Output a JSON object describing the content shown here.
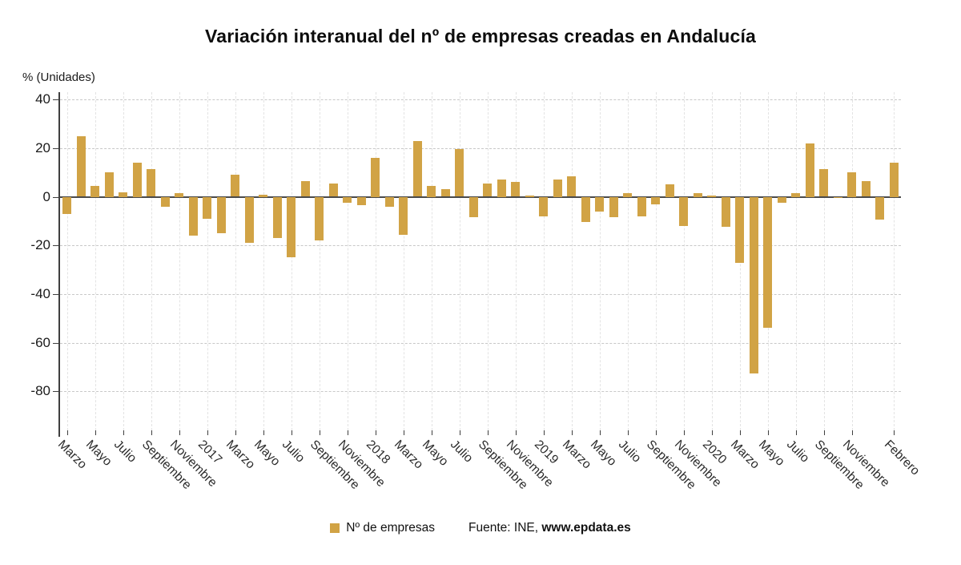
{
  "page": {
    "title": "Variación interanual del nº de empresas creadas en Andalucía",
    "y_axis_unit": "% (Unidades)"
  },
  "legend": {
    "label": "Nº de empresas",
    "color": "#d1a345"
  },
  "source": {
    "prefix": "Fuente: INE, ",
    "site": "www.epdata.es"
  },
  "chart_data": {
    "type": "bar",
    "title": "Variación interanual del nº de empresas creadas en Andalucía",
    "ylabel": "% (Unidades)",
    "series_name": "Nº de empresas",
    "bar_color": "#d1a345",
    "ylim": [
      -96,
      43
    ],
    "yticks": [
      40,
      20,
      0,
      -20,
      -40,
      -60,
      -80
    ],
    "grid": "dashed",
    "legend_position": "bottom-center",
    "values": [
      -7,
      25,
      4.5,
      10,
      2,
      14,
      11.5,
      -4,
      1.5,
      -16,
      -9,
      -15,
      9,
      -19,
      1,
      -17,
      -25,
      6.5,
      -18,
      5.5,
      -2.5,
      -3.5,
      16,
      -4,
      -15.5,
      23,
      4.5,
      3,
      19.5,
      -8.5,
      5.5,
      7,
      6,
      0.5,
      -8,
      7,
      8.5,
      -10.5,
      -6,
      -8.5,
      1.5,
      -8,
      -3,
      5,
      -12,
      1.5,
      0.5,
      -12.5,
      -27,
      -72.5,
      -54,
      -2.5,
      1.5,
      22,
      11.5,
      -0.5,
      10,
      6.5,
      -9.5,
      14
    ],
    "xticks": [
      {
        "label": "Marzo",
        "index": 0
      },
      {
        "label": "Mayo",
        "index": 2
      },
      {
        "label": "Julio",
        "index": 4
      },
      {
        "label": "Septiembre",
        "index": 6
      },
      {
        "label": "Noviembre",
        "index": 8
      },
      {
        "label": "2017",
        "index": 10
      },
      {
        "label": "Marzo",
        "index": 12
      },
      {
        "label": "Mayo",
        "index": 14
      },
      {
        "label": "Julio",
        "index": 16
      },
      {
        "label": "Septiembre",
        "index": 18
      },
      {
        "label": "Noviembre",
        "index": 20
      },
      {
        "label": "2018",
        "index": 22
      },
      {
        "label": "Marzo",
        "index": 24
      },
      {
        "label": "Mayo",
        "index": 26
      },
      {
        "label": "Julio",
        "index": 28
      },
      {
        "label": "Septiembre",
        "index": 30
      },
      {
        "label": "Noviembre",
        "index": 32
      },
      {
        "label": "2019",
        "index": 34
      },
      {
        "label": "Marzo",
        "index": 36
      },
      {
        "label": "Mayo",
        "index": 38
      },
      {
        "label": "Julio",
        "index": 40
      },
      {
        "label": "Septiembre",
        "index": 42
      },
      {
        "label": "Noviembre",
        "index": 44
      },
      {
        "label": "2020",
        "index": 46
      },
      {
        "label": "Marzo",
        "index": 48
      },
      {
        "label": "Mayo",
        "index": 50
      },
      {
        "label": "Julio",
        "index": 52
      },
      {
        "label": "Septiembre",
        "index": 54
      },
      {
        "label": "Noviembre",
        "index": 56
      },
      {
        "label": "Febrero",
        "index": 59
      }
    ]
  }
}
